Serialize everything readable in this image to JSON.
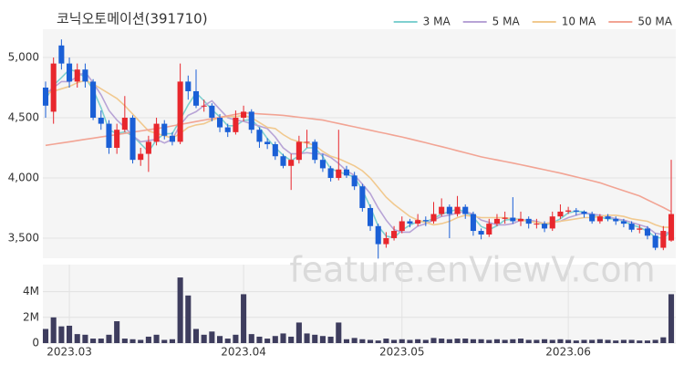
{
  "title": "코닉오토메이션(391710)",
  "watermark": "feature.enViewV.com",
  "legend": "top-right",
  "chart_data": [
    {
      "type": "candlestick",
      "up_color": "#e8272d",
      "down_color": "#1a5fd6",
      "grid": true,
      "categories": [
        null,
        null,
        null,
        null,
        null,
        null,
        null,
        null,
        null,
        null,
        null,
        null,
        null,
        null,
        null,
        null,
        null,
        null,
        null,
        null,
        null,
        null,
        null,
        null,
        null,
        null,
        null,
        null,
        null,
        null,
        null,
        null,
        null,
        null,
        null,
        null,
        null,
        null,
        null,
        null,
        null,
        null,
        null,
        null,
        null,
        null,
        null,
        null,
        null,
        null,
        null,
        null,
        null,
        null,
        null,
        null,
        null,
        null,
        null,
        null,
        null,
        null,
        null,
        null,
        null,
        null,
        null,
        null,
        null,
        null,
        null,
        null,
        null,
        null,
        null,
        null,
        null,
        null,
        null,
        null
      ],
      "open": [
        4750,
        4550,
        5100,
        4950,
        4800,
        4900,
        4800,
        4500,
        4450,
        4250,
        4400,
        4500,
        4150,
        4200,
        4300,
        4450,
        4350,
        4300,
        4800,
        4720,
        4600,
        4600,
        4500,
        4420,
        4380,
        4500,
        4550,
        4400,
        4300,
        4280,
        4180,
        4100,
        4150,
        4300,
        4300,
        4150,
        4080,
        4000,
        4070,
        4020,
        3930,
        3750,
        3600,
        3450,
        3500,
        3560,
        3640,
        3620,
        3650,
        3640,
        3700,
        3760,
        3700,
        3760,
        3700,
        3560,
        3530,
        3620,
        3660,
        3670,
        3640,
        3660,
        3620,
        3620,
        3580,
        3680,
        3720,
        3730,
        3720,
        3700,
        3640,
        3680,
        3660,
        3640,
        3620,
        3570,
        3580,
        3520,
        3420,
        3480
      ],
      "high": [
        4800,
        5000,
        5150,
        5000,
        4950,
        4950,
        4820,
        4560,
        4480,
        4450,
        4680,
        4520,
        4250,
        4350,
        4500,
        4480,
        4380,
        4950,
        4850,
        4900,
        4650,
        4620,
        4530,
        4450,
        4560,
        4600,
        4570,
        4420,
        4330,
        4300,
        4200,
        4200,
        4350,
        4400,
        4320,
        4200,
        4100,
        4400,
        4100,
        4050,
        3950,
        3780,
        3620,
        3550,
        3600,
        3680,
        3660,
        3700,
        3680,
        3800,
        3830,
        3780,
        3850,
        3780,
        3720,
        3580,
        3660,
        3700,
        3720,
        3840,
        3720,
        3680,
        3660,
        3640,
        3720,
        3780,
        3760,
        3750,
        3730,
        3720,
        3700,
        3700,
        3680,
        3660,
        3640,
        3610,
        3600,
        3540,
        3600,
        4150
      ],
      "low": [
        4500,
        4450,
        4900,
        4750,
        4750,
        4750,
        4480,
        4400,
        4200,
        4200,
        4380,
        4120,
        4100,
        4050,
        4270,
        4320,
        4270,
        4280,
        4650,
        4580,
        4550,
        4470,
        4380,
        4340,
        4360,
        4470,
        4370,
        4250,
        4240,
        4150,
        4080,
        3900,
        4120,
        4250,
        4120,
        4050,
        3970,
        3980,
        4000,
        3900,
        3720,
        3560,
        3330,
        3420,
        3480,
        3540,
        3590,
        3600,
        3600,
        3620,
        3680,
        3500,
        3680,
        3660,
        3520,
        3490,
        3510,
        3600,
        3620,
        3620,
        3600,
        3580,
        3580,
        3550,
        3560,
        3660,
        3700,
        3690,
        3670,
        3620,
        3620,
        3640,
        3610,
        3590,
        3550,
        3540,
        3490,
        3400,
        3400,
        3470
      ],
      "close": [
        4600,
        4950,
        4950,
        4800,
        4900,
        4800,
        4500,
        4450,
        4250,
        4400,
        4500,
        4150,
        4200,
        4300,
        4450,
        4350,
        4300,
        4800,
        4720,
        4600,
        4600,
        4500,
        4420,
        4380,
        4500,
        4550,
        4400,
        4300,
        4280,
        4180,
        4100,
        4150,
        4300,
        4300,
        4150,
        4080,
        4000,
        4070,
        4020,
        3930,
        3750,
        3600,
        3450,
        3500,
        3560,
        3640,
        3620,
        3650,
        3640,
        3700,
        3760,
        3700,
        3760,
        3700,
        3560,
        3530,
        3620,
        3660,
        3670,
        3640,
        3660,
        3620,
        3620,
        3580,
        3680,
        3720,
        3730,
        3720,
        3700,
        3640,
        3680,
        3660,
        3640,
        3620,
        3570,
        3580,
        3520,
        3420,
        3560,
        3700
      ],
      "series": [
        {
          "name": "3 MA",
          "color": "#7fd0d0",
          "values": [
            4650,
            4770,
            4833,
            4900,
            4883,
            4833,
            4733,
            4583,
            4400,
            4367,
            4383,
            4350,
            4283,
            4217,
            4317,
            4367,
            4367,
            4483,
            4607,
            4707,
            4640,
            4567,
            4507,
            4433,
            4433,
            4477,
            4483,
            4417,
            4327,
            4253,
            4187,
            4143,
            4183,
            4250,
            4250,
            4177,
            4077,
            4050,
            4030,
            4007,
            3900,
            3760,
            3600,
            3517,
            3503,
            3567,
            3607,
            3637,
            3637,
            3663,
            3700,
            3720,
            3740,
            3720,
            3673,
            3597,
            3570,
            3603,
            3650,
            3657,
            3657,
            3640,
            3633,
            3607,
            3627,
            3660,
            3710,
            3723,
            3717,
            3687,
            3673,
            3660,
            3660,
            3640,
            3610,
            3590,
            3557,
            3507,
            3500,
            3560
          ]
        },
        {
          "name": "5 MA",
          "color": "#b8a4d6",
          "values": [
            4700,
            4750,
            4800,
            4800,
            4840,
            4880,
            4790,
            4690,
            4560,
            4480,
            4420,
            4350,
            4300,
            4310,
            4320,
            4290,
            4320,
            4440,
            4520,
            4550,
            4600,
            4640,
            4570,
            4500,
            4480,
            4470,
            4450,
            4430,
            4410,
            4340,
            4250,
            4200,
            4200,
            4210,
            4200,
            4200,
            4170,
            4120,
            4060,
            4020,
            3950,
            3870,
            3750,
            3650,
            3570,
            3550,
            3550,
            3600,
            3620,
            3650,
            3680,
            3690,
            3710,
            3720,
            3700,
            3650,
            3630,
            3610,
            3610,
            3620,
            3650,
            3650,
            3640,
            3620,
            3630,
            3640,
            3670,
            3690,
            3710,
            3700,
            3690,
            3680,
            3660,
            3650,
            3630,
            3610,
            3590,
            3540,
            3530,
            3560
          ]
        },
        {
          "name": "10 MA",
          "color": "#f1c98f",
          "values": [
            4700,
            4720,
            4740,
            4760,
            4790,
            4810,
            4780,
            4740,
            4700,
            4660,
            4600,
            4530,
            4460,
            4390,
            4370,
            4350,
            4330,
            4370,
            4420,
            4440,
            4450,
            4480,
            4500,
            4510,
            4510,
            4520,
            4500,
            4460,
            4420,
            4410,
            4360,
            4320,
            4300,
            4290,
            4270,
            4220,
            4180,
            4160,
            4130,
            4100,
            4060,
            4000,
            3920,
            3840,
            3780,
            3730,
            3680,
            3650,
            3630,
            3610,
            3620,
            3640,
            3670,
            3690,
            3680,
            3670,
            3670,
            3670,
            3670,
            3660,
            3650,
            3640,
            3630,
            3620,
            3630,
            3640,
            3650,
            3660,
            3670,
            3670,
            3680,
            3690,
            3690,
            3680,
            3660,
            3650,
            3640,
            3610,
            3590,
            3590
          ]
        },
        {
          "name": "50 MA",
          "color": "#f2a494",
          "values": [
            4270,
            4280,
            4290,
            4300,
            4310,
            4320,
            4330,
            4340,
            4350,
            4360,
            4370,
            4380,
            4390,
            4400,
            4410,
            4420,
            4432,
            4444,
            4456,
            4468,
            4480,
            4492,
            4504,
            4516,
            4528,
            4540,
            4536,
            4532,
            4528,
            4524,
            4520,
            4512,
            4504,
            4496,
            4488,
            4480,
            4466,
            4452,
            4438,
            4424,
            4410,
            4396,
            4382,
            4368,
            4354,
            4340,
            4324,
            4308,
            4292,
            4276,
            4260,
            4243,
            4226,
            4209,
            4192,
            4175,
            4162,
            4149,
            4136,
            4123,
            4110,
            4096,
            4082,
            4068,
            4054,
            4040,
            4024,
            4008,
            3992,
            3976,
            3960,
            3938,
            3916,
            3894,
            3872,
            3850,
            3818,
            3786,
            3754,
            3720
          ]
        }
      ],
      "ylim": [
        3333,
        5235
      ],
      "yticks": [
        {
          "value": 3500,
          "label": "3,500"
        },
        {
          "value": 4000,
          "label": "4,000"
        },
        {
          "value": 4500,
          "label": "4,500"
        },
        {
          "value": 5000,
          "label": "5,000"
        }
      ]
    },
    {
      "type": "bar",
      "color": "#3e3d5e",
      "grid": true,
      "categories": [
        null,
        null,
        null,
        null,
        null,
        null,
        null,
        null,
        null,
        null,
        null,
        null,
        null,
        null,
        null,
        null,
        null,
        null,
        null,
        null,
        null,
        null,
        null,
        null,
        null,
        null,
        null,
        null,
        null,
        null,
        null,
        null,
        null,
        null,
        null,
        null,
        null,
        null,
        null,
        null,
        null,
        null,
        null,
        null,
        null,
        null,
        null,
        null,
        null,
        null,
        null,
        null,
        null,
        null,
        null,
        null,
        null,
        null,
        null,
        null,
        null,
        null,
        null,
        null,
        null,
        null,
        null,
        null,
        null,
        null,
        null,
        null,
        null,
        null,
        null,
        null,
        null,
        null,
        null,
        null
      ],
      "values": [
        1100000,
        2000000,
        1300000,
        1350000,
        700000,
        650000,
        350000,
        350000,
        650000,
        1700000,
        350000,
        300000,
        250000,
        500000,
        650000,
        250000,
        300000,
        5100000,
        3700000,
        1100000,
        650000,
        900000,
        550000,
        350000,
        650000,
        3800000,
        700000,
        500000,
        350000,
        550000,
        750000,
        500000,
        1600000,
        750000,
        650000,
        550000,
        500000,
        1600000,
        300000,
        400000,
        300000,
        250000,
        200000,
        350000,
        250000,
        300000,
        250000,
        300000,
        250000,
        400000,
        350000,
        300000,
        350000,
        350000,
        300000,
        300000,
        250000,
        300000,
        250000,
        300000,
        350000,
        250000,
        250000,
        300000,
        250000,
        300000,
        250000,
        200000,
        250000,
        250000,
        300000,
        250000,
        200000,
        250000,
        250000,
        200000,
        200000,
        250000,
        450000,
        3800000
      ],
      "ylim": [
        0,
        6100000
      ],
      "yticks": [
        0,
        {
          "value": 2000000,
          "label": "2M"
        },
        {
          "value": 4000000,
          "label": "4M"
        }
      ],
      "xticks": [
        {
          "value": 3,
          "label": "2023.03"
        },
        {
          "value": 25,
          "label": "2023.04"
        },
        {
          "value": 45,
          "label": "2023.05"
        },
        {
          "value": 66,
          "label": "2023.06"
        }
      ]
    }
  ]
}
